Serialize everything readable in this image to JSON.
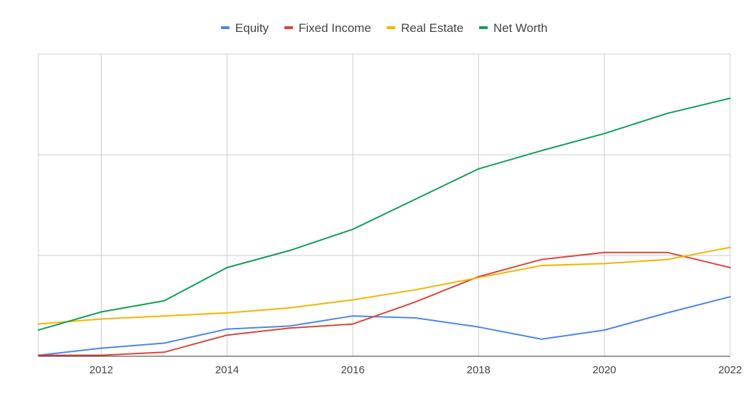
{
  "chart_data": {
    "type": "line",
    "title": "",
    "xlabel": "",
    "ylabel": "",
    "x": [
      2011,
      2012,
      2013,
      2014,
      2015,
      2016,
      2017,
      2018,
      2019,
      2020,
      2021,
      2022
    ],
    "x_ticks": [
      2012,
      2014,
      2016,
      2018,
      2020,
      2022
    ],
    "xlim": [
      2011,
      2022
    ],
    "ylim": [
      0,
      3
    ],
    "y_gridlines": [
      0,
      1,
      2,
      3
    ],
    "y_tick_labels_visible": false,
    "grid": true,
    "legend_position": "top-center",
    "series": [
      {
        "name": "Equity",
        "color": "#4a86e8",
        "values": [
          0.01,
          0.08,
          0.13,
          0.27,
          0.3,
          0.4,
          0.38,
          0.29,
          0.17,
          0.26,
          0.43,
          0.59
        ]
      },
      {
        "name": "Fixed Income",
        "color": "#db4437",
        "values": [
          0.01,
          0.01,
          0.04,
          0.21,
          0.28,
          0.32,
          0.54,
          0.79,
          0.96,
          1.03,
          1.03,
          0.88
        ]
      },
      {
        "name": "Real Estate",
        "color": "#f4b400",
        "values": [
          0.32,
          0.37,
          0.4,
          0.43,
          0.48,
          0.56,
          0.66,
          0.78,
          0.9,
          0.92,
          0.96,
          1.08
        ]
      },
      {
        "name": "Net Worth",
        "color": "#0f9d58",
        "values": [
          0.26,
          0.44,
          0.55,
          0.88,
          1.05,
          1.26,
          1.56,
          1.86,
          2.04,
          2.21,
          2.41,
          2.56
        ]
      }
    ]
  }
}
